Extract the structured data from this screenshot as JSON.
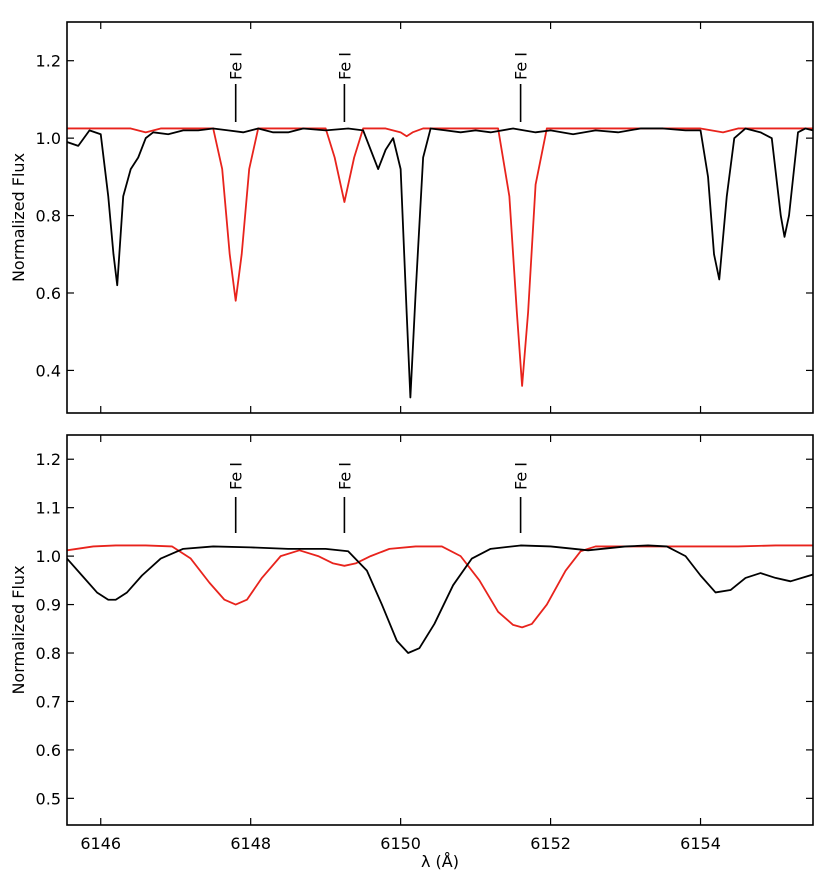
{
  "chart_data": [
    {
      "type": "line",
      "title": "",
      "xlabel": "",
      "ylabel": "Normalized Flux",
      "xlim": [
        6145.55,
        6155.5
      ],
      "ylim": [
        0.29,
        1.3
      ],
      "x_ticks": [
        6146,
        6148,
        6150,
        6152,
        6154
      ],
      "x_tick_labels": [
        "",
        "",
        "",
        "",
        ""
      ],
      "y_ticks": [
        0.4,
        0.6,
        0.8,
        1.0,
        1.2
      ],
      "y_tick_labels": [
        "0.4",
        "0.6",
        "0.8",
        "1.0",
        "1.2"
      ],
      "grid": false,
      "annotations": [
        {
          "label": "Fe I",
          "x": 6147.8
        },
        {
          "label": "Fe I",
          "x": 6149.25
        },
        {
          "label": "Fe I",
          "x": 6151.6
        }
      ],
      "series": [
        {
          "color": "#e8231c",
          "x": [
            6145.55,
            6146.4,
            6146.6,
            6146.8,
            6147.5,
            6147.62,
            6147.72,
            6147.8,
            6147.88,
            6147.98,
            6148.1,
            6148.6,
            6149.0,
            6149.12,
            6149.25,
            6149.38,
            6149.5,
            6149.8,
            6150.0,
            6150.08,
            6150.16,
            6150.3,
            6151.3,
            6151.45,
            6151.55,
            6151.62,
            6151.7,
            6151.8,
            6151.95,
            6152.5,
            6153.0,
            6153.5,
            6154.0,
            6154.3,
            6154.5,
            6155.5
          ],
          "y": [
            1.025,
            1.025,
            1.015,
            1.025,
            1.025,
            0.92,
            0.7,
            0.58,
            0.7,
            0.92,
            1.025,
            1.025,
            1.025,
            0.95,
            0.835,
            0.95,
            1.025,
            1.025,
            1.015,
            1.005,
            1.015,
            1.025,
            1.025,
            0.85,
            0.55,
            0.36,
            0.55,
            0.88,
            1.025,
            1.025,
            1.025,
            1.025,
            1.025,
            1.015,
            1.025,
            1.025
          ]
        },
        {
          "color": "#000000",
          "x": [
            6145.55,
            6145.7,
            6145.85,
            6146.0,
            6146.1,
            6146.17,
            6146.22,
            6146.3,
            6146.4,
            6146.5,
            6146.6,
            6146.7,
            6146.9,
            6147.1,
            6147.3,
            6147.5,
            6147.7,
            6147.9,
            6148.1,
            6148.3,
            6148.5,
            6148.7,
            6149.0,
            6149.3,
            6149.5,
            6149.6,
            6149.7,
            6149.8,
            6149.9,
            6150.0,
            6150.08,
            6150.13,
            6150.2,
            6150.3,
            6150.4,
            6150.6,
            6150.8,
            6151.0,
            6151.2,
            6151.5,
            6151.8,
            6152.0,
            6152.3,
            6152.6,
            6152.9,
            6153.2,
            6153.5,
            6153.8,
            6154.0,
            6154.1,
            6154.18,
            6154.25,
            6154.35,
            6154.45,
            6154.6,
            6154.8,
            6154.95,
            6155.07,
            6155.12,
            6155.18,
            6155.3,
            6155.4,
            6155.5
          ],
          "y": [
            0.99,
            0.98,
            1.02,
            1.01,
            0.85,
            0.7,
            0.62,
            0.85,
            0.92,
            0.95,
            1.0,
            1.015,
            1.01,
            1.02,
            1.02,
            1.025,
            1.02,
            1.015,
            1.025,
            1.015,
            1.015,
            1.025,
            1.02,
            1.025,
            1.02,
            0.97,
            0.92,
            0.97,
            1.0,
            0.92,
            0.55,
            0.33,
            0.6,
            0.95,
            1.025,
            1.02,
            1.015,
            1.02,
            1.015,
            1.025,
            1.015,
            1.02,
            1.01,
            1.02,
            1.015,
            1.025,
            1.025,
            1.02,
            1.02,
            0.9,
            0.7,
            0.635,
            0.85,
            1.0,
            1.025,
            1.015,
            1.0,
            0.8,
            0.745,
            0.8,
            1.015,
            1.025,
            1.02
          ]
        }
      ]
    },
    {
      "type": "line",
      "title": "",
      "xlabel": "λ (Å)",
      "ylabel": "Normalized Flux",
      "xlim": [
        6145.55,
        6155.5
      ],
      "ylim": [
        0.445,
        1.25
      ],
      "x_ticks": [
        6146,
        6148,
        6150,
        6152,
        6154
      ],
      "x_tick_labels": [
        "6146",
        "6148",
        "6150",
        "6152",
        "6154"
      ],
      "y_ticks": [
        0.5,
        0.6,
        0.7,
        0.8,
        0.9,
        1.0,
        1.1,
        1.2
      ],
      "y_tick_labels": [
        "0.5",
        "0.6",
        "0.7",
        "0.8",
        "0.9",
        "1.0",
        "1.1",
        "1.2"
      ],
      "grid": false,
      "annotations": [
        {
          "label": "Fe I",
          "x": 6147.8
        },
        {
          "label": "Fe I",
          "x": 6149.25
        },
        {
          "label": "Fe I",
          "x": 6151.6
        }
      ],
      "series": [
        {
          "color": "#e8231c",
          "x": [
            6145.55,
            6145.9,
            6146.2,
            6146.6,
            6146.95,
            6147.2,
            6147.45,
            6147.65,
            6147.8,
            6147.95,
            6148.15,
            6148.4,
            6148.65,
            6148.9,
            6149.1,
            6149.25,
            6149.4,
            6149.6,
            6149.85,
            6150.2,
            6150.55,
            6150.8,
            6151.05,
            6151.3,
            6151.5,
            6151.62,
            6151.75,
            6151.95,
            6152.2,
            6152.4,
            6152.6,
            6153.0,
            6153.5,
            6154.0,
            6154.5,
            6155.0,
            6155.5
          ],
          "y": [
            1.012,
            1.02,
            1.022,
            1.022,
            1.02,
            0.995,
            0.945,
            0.91,
            0.9,
            0.91,
            0.955,
            1.0,
            1.012,
            1.0,
            0.985,
            0.98,
            0.985,
            1.0,
            1.015,
            1.02,
            1.02,
            1.0,
            0.95,
            0.885,
            0.858,
            0.853,
            0.86,
            0.9,
            0.97,
            1.01,
            1.02,
            1.02,
            1.02,
            1.02,
            1.02,
            1.022,
            1.022
          ]
        },
        {
          "color": "#000000",
          "x": [
            6145.55,
            6145.75,
            6145.95,
            6146.1,
            6146.2,
            6146.35,
            6146.55,
            6146.8,
            6147.1,
            6147.5,
            6148.0,
            6148.5,
            6149.0,
            6149.3,
            6149.55,
            6149.75,
            6149.95,
            6150.1,
            6150.25,
            6150.45,
            6150.7,
            6150.95,
            6151.2,
            6151.6,
            6152.0,
            6152.5,
            6153.0,
            6153.3,
            6153.55,
            6153.8,
            6154.0,
            6154.2,
            6154.4,
            6154.6,
            6154.8,
            6155.0,
            6155.2,
            6155.5
          ],
          "y": [
            0.995,
            0.96,
            0.925,
            0.91,
            0.91,
            0.925,
            0.96,
            0.995,
            1.015,
            1.02,
            1.018,
            1.015,
            1.015,
            1.01,
            0.97,
            0.9,
            0.825,
            0.8,
            0.81,
            0.86,
            0.94,
            0.995,
            1.015,
            1.022,
            1.02,
            1.012,
            1.02,
            1.022,
            1.02,
            1.0,
            0.96,
            0.925,
            0.93,
            0.955,
            0.965,
            0.955,
            0.948,
            0.962
          ]
        }
      ]
    }
  ]
}
